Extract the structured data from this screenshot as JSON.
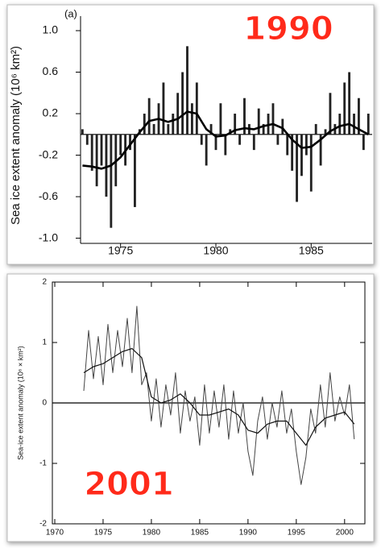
{
  "chart_data": [
    {
      "type": "bar",
      "panel_label": "(a)",
      "annotation": "1990",
      "y_label": "Sea ice extent anomaly (10⁶ km²)",
      "xlim": [
        1972.9,
        1988.2
      ],
      "ylim": [
        -1.05,
        1.14
      ],
      "xticks": [
        1975,
        1980,
        1985
      ],
      "yticks": [
        {
          "value": 1.0,
          "label": "1.0"
        },
        0.6,
        0.2,
        -0.2,
        -0.6,
        {
          "value": -1.0,
          "label": "-1.0"
        }
      ],
      "series": [
        {
          "type": "bar",
          "color": "#222222",
          "x": [
            1973.0,
            1973.25,
            1973.5,
            1973.75,
            1974.0,
            1974.25,
            1974.5,
            1974.75,
            1975.0,
            1975.25,
            1975.5,
            1975.75,
            1976.0,
            1976.25,
            1976.5,
            1976.75,
            1977.0,
            1977.25,
            1977.5,
            1977.75,
            1978.0,
            1978.25,
            1978.5,
            1978.75,
            1979.0,
            1979.25,
            1979.5,
            1979.75,
            1980.0,
            1980.25,
            1980.5,
            1980.75,
            1981.0,
            1981.25,
            1981.5,
            1981.75,
            1982.0,
            1982.25,
            1982.5,
            1982.75,
            1983.0,
            1983.25,
            1983.5,
            1983.75,
            1984.0,
            1984.25,
            1984.5,
            1984.75,
            1985.0,
            1985.25,
            1985.5,
            1985.75,
            1986.0,
            1986.25,
            1986.5,
            1986.75,
            1987.0,
            1987.25,
            1987.5,
            1987.75,
            1988.0
          ],
          "values": [
            0.05,
            -0.1,
            -0.35,
            -0.5,
            -0.3,
            -0.6,
            -0.9,
            -0.5,
            -0.2,
            -0.3,
            -0.15,
            -0.7,
            0.05,
            0.2,
            0.35,
            0.1,
            0.3,
            0.5,
            0.1,
            0.2,
            0.4,
            0.6,
            0.85,
            0.3,
            0.5,
            -0.1,
            -0.3,
            0.1,
            -0.15,
            0.3,
            -0.2,
            0.05,
            0.2,
            -0.1,
            0.35,
            0.1,
            -0.15,
            0.25,
            0.1,
            0.2,
            0.3,
            -0.1,
            0.15,
            -0.2,
            -0.35,
            -0.65,
            -0.4,
            -0.2,
            -0.55,
            0.1,
            -0.3,
            0.05,
            0.4,
            0.1,
            0.2,
            0.5,
            0.6,
            0.2,
            0.35,
            -0.15,
            0.2
          ]
        },
        {
          "type": "line",
          "color": "#000000",
          "x": [
            1973.0,
            1973.5,
            1974.0,
            1974.5,
            1975.0,
            1975.5,
            1976.0,
            1976.5,
            1977.0,
            1977.5,
            1978.0,
            1978.5,
            1979.0,
            1979.5,
            1980.0,
            1980.5,
            1981.0,
            1981.5,
            1982.0,
            1982.5,
            1983.0,
            1983.5,
            1984.0,
            1984.5,
            1985.0,
            1985.5,
            1986.0,
            1986.5,
            1987.0,
            1987.5,
            1988.0
          ],
          "values": [
            -0.3,
            -0.31,
            -0.33,
            -0.3,
            -0.22,
            -0.1,
            0.02,
            0.13,
            0.15,
            0.12,
            0.15,
            0.22,
            0.2,
            0.05,
            -0.02,
            -0.01,
            0.04,
            0.06,
            0.05,
            0.08,
            0.1,
            0.06,
            -0.05,
            -0.13,
            -0.12,
            -0.05,
            0.03,
            0.08,
            0.1,
            0.05,
            0.0
          ]
        }
      ]
    },
    {
      "type": "line",
      "annotation": "2001",
      "y_label": "Sea-ice extent anomaly (10⁶ × km²)",
      "xlim": [
        1969.75,
        2002.1
      ],
      "ylim": [
        -2,
        2
      ],
      "xticks": [
        1970,
        1975,
        1980,
        1985,
        1990,
        1995,
        2000
      ],
      "yticks": [
        2,
        1,
        0,
        -1,
        -2
      ],
      "series": [
        {
          "type": "line",
          "color": "#444444",
          "x": [
            1973.0,
            1973.5,
            1974.0,
            1974.5,
            1975.0,
            1975.5,
            1976.0,
            1976.5,
            1977.0,
            1977.5,
            1978.0,
            1978.5,
            1979.0,
            1979.5,
            1980.0,
            1980.5,
            1981.0,
            1981.5,
            1982.0,
            1982.5,
            1983.0,
            1983.5,
            1984.0,
            1984.5,
            1985.0,
            1985.5,
            1986.0,
            1986.5,
            1987.0,
            1987.5,
            1988.0,
            1988.5,
            1989.0,
            1989.5,
            1990.0,
            1990.5,
            1991.0,
            1991.5,
            1992.0,
            1992.5,
            1993.0,
            1993.5,
            1994.0,
            1994.5,
            1995.0,
            1995.5,
            1996.0,
            1996.5,
            1997.0,
            1997.5,
            1998.0,
            1998.5,
            1999.0,
            1999.5,
            2000.0,
            2000.5,
            2001.0
          ],
          "values": [
            0.2,
            1.2,
            0.4,
            1.1,
            0.3,
            1.3,
            0.5,
            1.2,
            0.6,
            1.4,
            0.5,
            1.6,
            0.3,
            0.5,
            -0.3,
            0.4,
            -0.4,
            0.3,
            -0.2,
            0.5,
            -0.5,
            0.2,
            -0.3,
            0.1,
            -0.7,
            0.3,
            -0.5,
            0.2,
            -0.4,
            0.3,
            -0.6,
            0.2,
            -0.5,
            0.0,
            -0.8,
            -1.2,
            -0.3,
            0.1,
            -0.6,
            0.0,
            -0.4,
            0.2,
            -0.5,
            -0.1,
            -0.8,
            -1.35,
            -0.9,
            -0.1,
            -0.5,
            0.3,
            -0.4,
            0.5,
            -0.3,
            0.1,
            -0.2,
            0.3,
            -0.6
          ]
        },
        {
          "type": "line",
          "color": "#111111",
          "x": [
            1973,
            1974,
            1975,
            1976,
            1977,
            1978,
            1979,
            1980,
            1981,
            1982,
            1983,
            1984,
            1985,
            1986,
            1987,
            1988,
            1989,
            1990,
            1991,
            1992,
            1993,
            1994,
            1995,
            1996,
            1997,
            1998,
            1999,
            2000,
            2001
          ],
          "values": [
            0.5,
            0.6,
            0.65,
            0.75,
            0.85,
            0.9,
            0.75,
            0.1,
            0.0,
            0.05,
            0.15,
            0.0,
            -0.2,
            -0.2,
            -0.15,
            -0.1,
            -0.2,
            -0.45,
            -0.5,
            -0.35,
            -0.3,
            -0.3,
            -0.5,
            -0.7,
            -0.4,
            -0.25,
            -0.2,
            -0.15,
            -0.35
          ]
        }
      ]
    }
  ]
}
